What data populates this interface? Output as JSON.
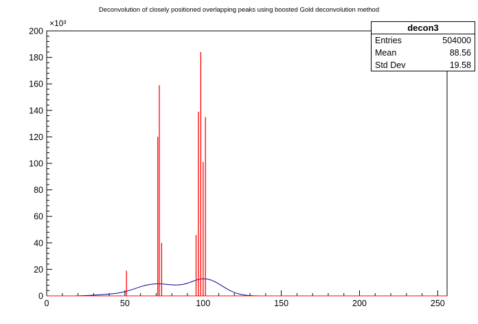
{
  "stats_box": {
    "title": "decon3",
    "rows": [
      {
        "label": "Entries",
        "value": "504000"
      },
      {
        "label": "Mean",
        "value": "88.56"
      },
      {
        "label": "Std Dev",
        "value": "19.58"
      }
    ]
  },
  "chart_data": {
    "type": "line",
    "title": "Deconvolution of closely positioned overlapping peaks using boosted Gold deconvolution method",
    "xlabel": "",
    "ylabel": "",
    "xlim": [
      0,
      256
    ],
    "ylim": [
      0,
      200000
    ],
    "grid": false,
    "legend": "none",
    "x_ticks": [
      0,
      50,
      100,
      150,
      200,
      250
    ],
    "x_minor_step": 10,
    "y_ticks": [
      0,
      20000,
      40000,
      60000,
      80000,
      100000,
      120000,
      140000,
      160000,
      180000,
      200000
    ],
    "y_tick_labels": [
      "0",
      "20",
      "40",
      "60",
      "80",
      "100",
      "120",
      "140",
      "160",
      "180",
      "200"
    ],
    "y_minor_step": 4000,
    "y_major_step": 20000,
    "y_axis_exponent": "×10³",
    "frame_color": "#000000",
    "series": [
      {
        "name": "source-spectrum",
        "type": "curve",
        "color": "#00009a",
        "x": [
          18,
          25,
          30,
          35,
          40,
          45,
          50,
          55,
          60,
          63,
          66,
          69,
          72,
          75,
          78,
          81,
          84,
          87,
          90,
          93,
          96,
          99,
          102,
          105,
          108,
          111,
          114,
          117,
          120,
          124,
          128,
          132,
          136
        ],
        "y": [
          0,
          250,
          550,
          900,
          1350,
          2000,
          3100,
          4900,
          6900,
          7900,
          8600,
          9000,
          9100,
          8900,
          8500,
          8200,
          8200,
          8600,
          9500,
          10800,
          12100,
          12900,
          12800,
          12000,
          10400,
          8300,
          6100,
          4100,
          2500,
          1100,
          400,
          100,
          0
        ]
      },
      {
        "name": "deconvolved-peaks",
        "type": "spikes",
        "color": "#ff0000",
        "baseline": [
          0,
          256
        ],
        "points": [
          {
            "x": 51,
            "y": 19000
          },
          {
            "x": 71,
            "y": 120000
          },
          {
            "x": 72,
            "y": 159000
          },
          {
            "x": 73.5,
            "y": 40000
          },
          {
            "x": 95.5,
            "y": 46000
          },
          {
            "x": 97,
            "y": 139000
          },
          {
            "x": 98.5,
            "y": 184000
          },
          {
            "x": 100,
            "y": 101000
          },
          {
            "x": 101.5,
            "y": 135000
          }
        ]
      }
    ]
  }
}
